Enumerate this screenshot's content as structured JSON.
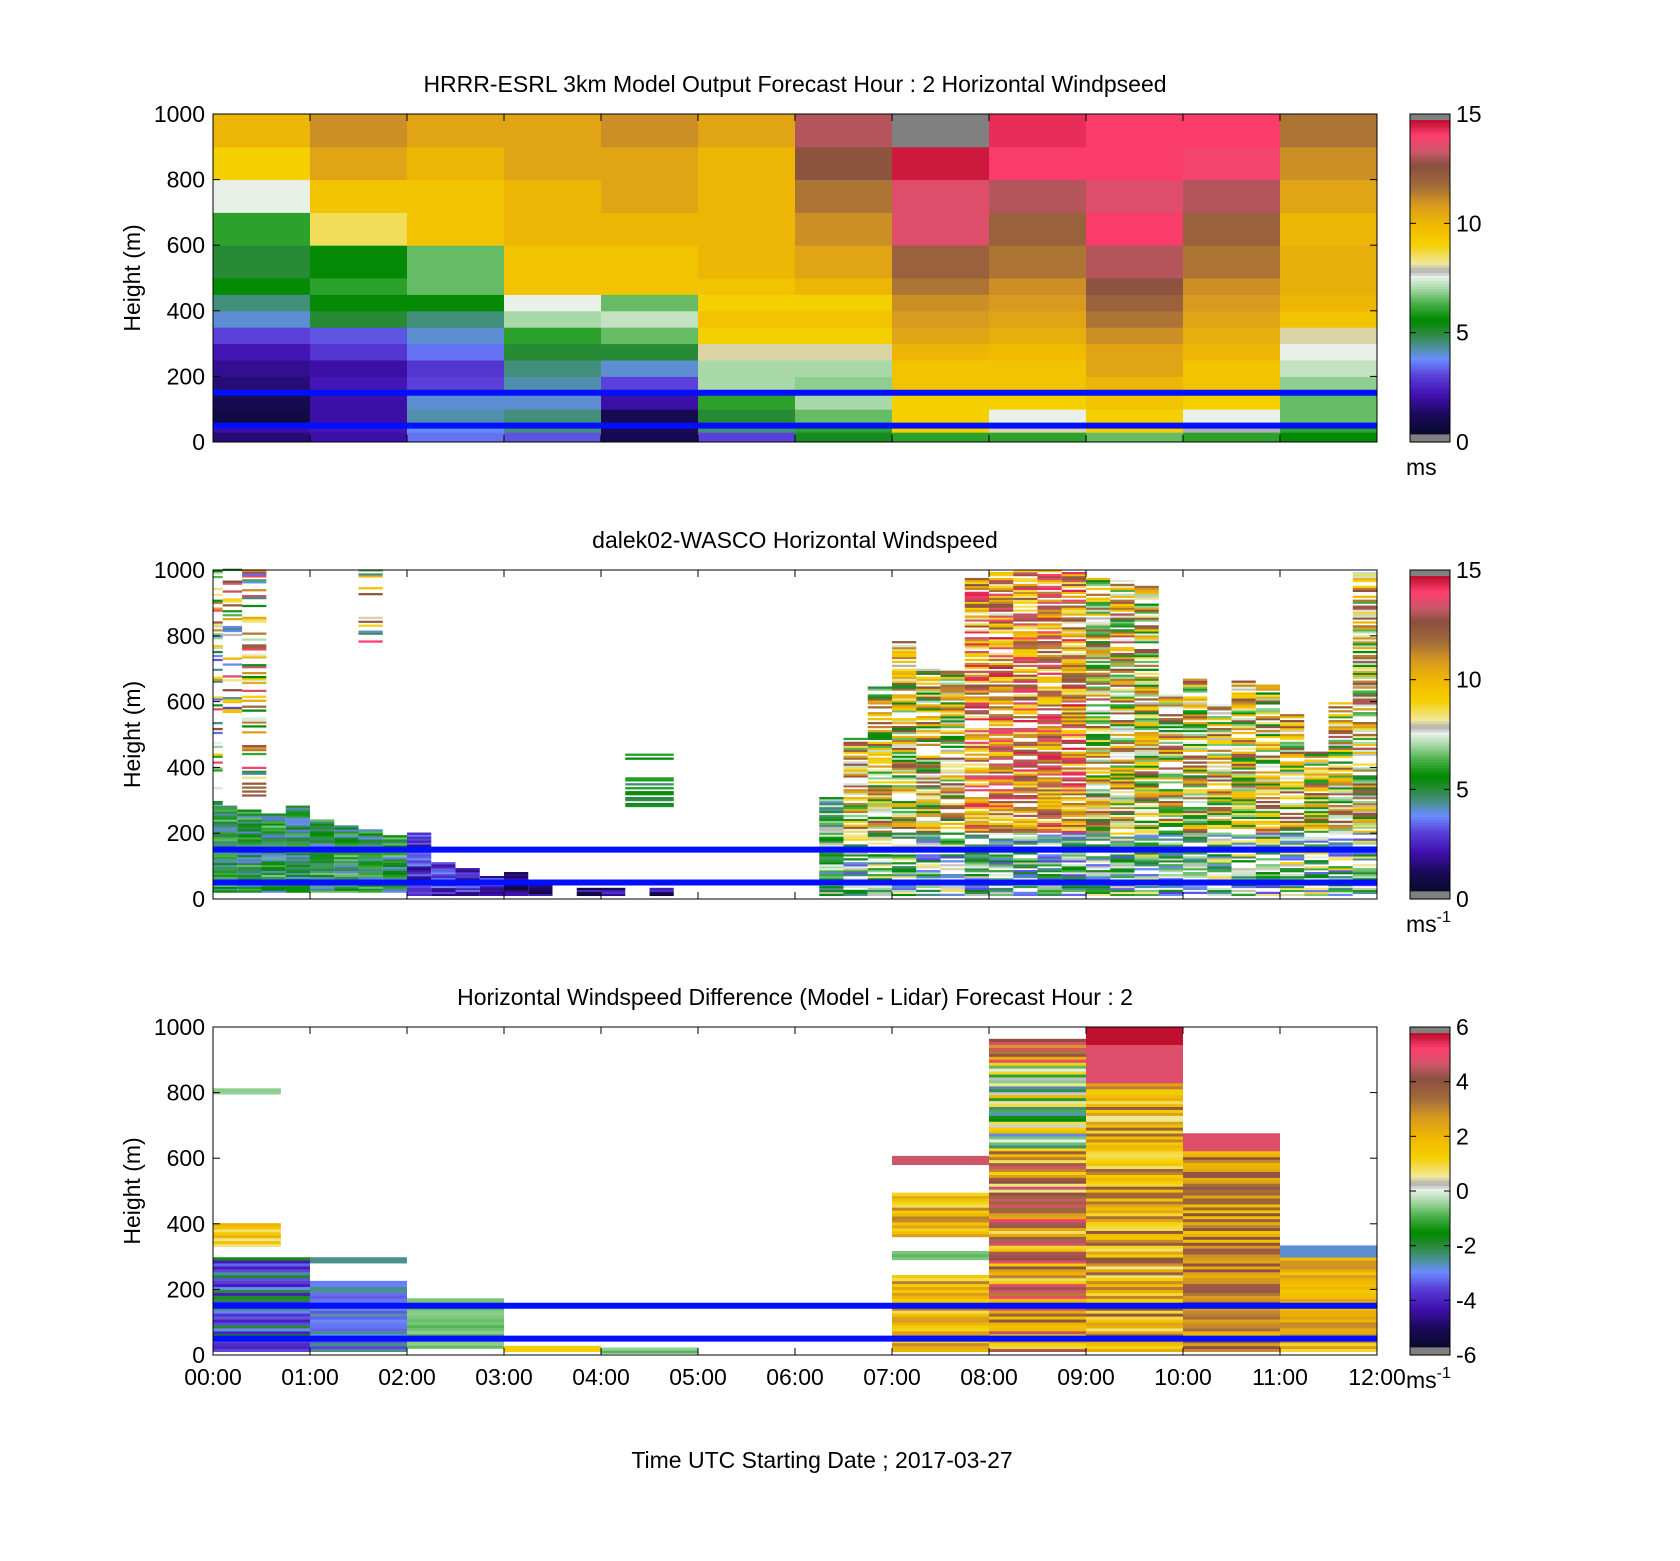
{
  "figure": {
    "xlabel": "Time UTC  Starting Date ; 2017-03-27",
    "unit_main": "ms",
    "unit_sup": "-1"
  },
  "chart_data": [
    {
      "type": "heatmap",
      "title": "HRRR-ESRL 3km Model Output   Forecast Hour : 2 Horizontal Windpseed",
      "ylabel": "Height (m)",
      "xlim": [
        0,
        12
      ],
      "ylim": [
        0,
        1000
      ],
      "yticks": [
        0,
        200,
        400,
        600,
        800,
        1000
      ],
      "xticks": [
        "00:00",
        "01:00",
        "02:00",
        "03:00",
        "04:00",
        "05:00",
        "06:00",
        "07:00",
        "08:00",
        "09:00",
        "10:00",
        "11:00",
        "12:00"
      ],
      "show_xticklabels": false,
      "colorbar": {
        "min": 0,
        "max": 15,
        "ticks": [
          0,
          5,
          10,
          15
        ],
        "unit": "ms",
        "unit_sup": "",
        "scale": "speed"
      },
      "reference_heights": [
        150,
        50
      ],
      "heights": [
        0,
        30,
        60,
        100,
        150,
        200,
        250,
        300,
        350,
        400,
        450,
        500,
        600,
        700,
        800,
        900,
        1000
      ],
      "columns_x": [
        0,
        1,
        2,
        3,
        4,
        5,
        6,
        7,
        8,
        9,
        10,
        11
      ],
      "values": [
        [
          1.5,
          2.0,
          3.5,
          3.2,
          1.0,
          3.0,
          5.2,
          6.0,
          6.0,
          6.5,
          6.0,
          5.5
        ],
        [
          2.0,
          2.2,
          3.8,
          4.5,
          1.2,
          4.5,
          6.0,
          9.0,
          8.0,
          9.0,
          7.8,
          6.0
        ],
        [
          0.8,
          2.0,
          4.2,
          4.5,
          1.0,
          5.0,
          6.5,
          9.0,
          7.5,
          9.0,
          7.5,
          6.5
        ],
        [
          1.0,
          2.0,
          4.0,
          4.0,
          2.0,
          6.0,
          7.0,
          9.0,
          9.0,
          9.5,
          9.0,
          6.5
        ],
        [
          1.5,
          2.2,
          3.0,
          4.2,
          3.0,
          7.0,
          6.8,
          9.5,
          9.5,
          10.0,
          9.5,
          6.8
        ],
        [
          1.8,
          2.0,
          2.8,
          4.5,
          4.0,
          7.0,
          7.0,
          9.5,
          9.5,
          10.5,
          9.5,
          7.2
        ],
        [
          2.2,
          2.8,
          3.5,
          5.0,
          5.0,
          8.0,
          8.0,
          10.0,
          9.8,
          10.5,
          10.0,
          7.5
        ],
        [
          3.0,
          3.2,
          4.0,
          6.0,
          6.5,
          9.0,
          9.0,
          10.5,
          10.2,
          11.0,
          10.2,
          8.0
        ],
        [
          4.0,
          5.0,
          4.5,
          7.0,
          7.2,
          9.5,
          9.5,
          10.8,
          10.5,
          11.5,
          10.5,
          9.5
        ],
        [
          4.5,
          5.5,
          5.5,
          7.5,
          6.5,
          9.0,
          9.0,
          11.0,
          10.8,
          12.0,
          10.8,
          10.0
        ],
        [
          5.5,
          6.0,
          6.5,
          9.5,
          9.5,
          9.5,
          10.0,
          11.5,
          11.0,
          12.5,
          11.0,
          10.2
        ],
        [
          5.0,
          5.5,
          6.5,
          9.5,
          9.5,
          10.0,
          10.5,
          12.0,
          11.5,
          13.0,
          11.5,
          10.2
        ],
        [
          6.0,
          8.5,
          9.5,
          10.0,
          10.0,
          10.0,
          11.0,
          13.5,
          12.0,
          14.0,
          12.0,
          10.0
        ],
        [
          7.5,
          9.5,
          9.5,
          10.0,
          10.5,
          10.0,
          11.5,
          13.5,
          13.0,
          13.5,
          13.0,
          10.5
        ],
        [
          9.0,
          10.5,
          10.0,
          10.5,
          10.5,
          10.0,
          12.5,
          14.5,
          14.0,
          14.0,
          13.8,
          11.0
        ],
        [
          10.0,
          11.0,
          10.5,
          10.5,
          11.0,
          10.5,
          13.0,
          14.8,
          14.2,
          14.0,
          14.0,
          11.5
        ]
      ]
    },
    {
      "type": "heatmap",
      "title": "dalek02-WASCO  Horizontal Windspeed",
      "ylabel": "Height (m)",
      "xlim": [
        0,
        12
      ],
      "ylim": [
        0,
        1000
      ],
      "yticks": [
        0,
        200,
        400,
        600,
        800,
        1000
      ],
      "xticks": [
        "00:00",
        "01:00",
        "02:00",
        "03:00",
        "04:00",
        "05:00",
        "06:00",
        "07:00",
        "08:00",
        "09:00",
        "10:00",
        "11:00",
        "12:00"
      ],
      "show_xticklabels": false,
      "colorbar": {
        "min": 0,
        "max": 15,
        "ticks": [
          0,
          5,
          10,
          15
        ],
        "unit": "ms",
        "unit_sup": "-1",
        "scale": "speed"
      },
      "reference_heights": [
        150,
        50
      ],
      "segments": [
        [
          0.0,
          0.25,
          20,
          280,
          "low_green"
        ],
        [
          0.25,
          0.5,
          20,
          270,
          "low_green"
        ],
        [
          0.5,
          0.75,
          20,
          260,
          "low_green"
        ],
        [
          0.75,
          1.0,
          20,
          280,
          "low_green"
        ],
        [
          1.0,
          1.25,
          20,
          240,
          "low_green"
        ],
        [
          1.25,
          1.5,
          20,
          220,
          "low_green"
        ],
        [
          1.5,
          1.75,
          20,
          210,
          "low_green"
        ],
        [
          1.75,
          2.0,
          20,
          190,
          "low_green"
        ],
        [
          2.0,
          2.25,
          10,
          200,
          "low_blue"
        ],
        [
          2.25,
          2.5,
          10,
          110,
          "low_blue"
        ],
        [
          2.5,
          2.75,
          10,
          90,
          "low_blue"
        ],
        [
          2.75,
          3.0,
          10,
          70,
          "low_blue"
        ],
        [
          3.0,
          3.25,
          10,
          80,
          "low_purple"
        ],
        [
          3.25,
          3.5,
          10,
          50,
          "low_purple"
        ],
        [
          3.75,
          4.0,
          10,
          30,
          "low_purple"
        ],
        [
          4.0,
          4.25,
          10,
          30,
          "low_purple"
        ],
        [
          4.5,
          4.75,
          10,
          30,
          "low_purple"
        ],
        [
          6.25,
          6.5,
          10,
          310,
          "mix_green"
        ],
        [
          6.5,
          6.75,
          10,
          490,
          "mix"
        ],
        [
          6.75,
          7.0,
          10,
          660,
          "mix"
        ],
        [
          7.0,
          7.25,
          10,
          780,
          "mix"
        ],
        [
          7.25,
          7.5,
          10,
          700,
          "mix"
        ],
        [
          7.5,
          7.75,
          10,
          700,
          "mix"
        ],
        [
          7.75,
          8.0,
          10,
          980,
          "mix_hi"
        ],
        [
          8.0,
          8.25,
          10,
          990,
          "mix_hi"
        ],
        [
          8.25,
          8.5,
          10,
          1000,
          "mix_hi"
        ],
        [
          8.5,
          8.75,
          10,
          1000,
          "mix_hi"
        ],
        [
          8.75,
          9.0,
          10,
          990,
          "mix_hi"
        ],
        [
          9.0,
          9.25,
          10,
          990,
          "mix"
        ],
        [
          9.25,
          9.5,
          10,
          970,
          "mix"
        ],
        [
          9.5,
          9.75,
          10,
          950,
          "mix"
        ],
        [
          9.75,
          10.0,
          10,
          620,
          "mix"
        ],
        [
          10.0,
          10.25,
          10,
          680,
          "mix"
        ],
        [
          10.25,
          10.5,
          10,
          600,
          "mix"
        ],
        [
          10.5,
          10.75,
          10,
          660,
          "mix"
        ],
        [
          10.75,
          11.0,
          10,
          650,
          "mix"
        ],
        [
          11.0,
          11.25,
          10,
          560,
          "mix"
        ],
        [
          11.25,
          11.5,
          10,
          450,
          "mix"
        ],
        [
          11.5,
          11.75,
          10,
          600,
          "mix"
        ],
        [
          11.75,
          12.0,
          10,
          1000,
          "mix"
        ],
        [
          0.0,
          0.1,
          280,
          1000,
          "sparse_hi"
        ],
        [
          0.1,
          0.3,
          560,
          1000,
          "sparse_hi"
        ],
        [
          0.3,
          0.55,
          300,
          1000,
          "sparse_hi"
        ],
        [
          1.5,
          1.75,
          780,
          1000,
          "sparse_hi"
        ],
        [
          4.25,
          4.75,
          280,
          440,
          "sparse_green"
        ]
      ]
    },
    {
      "type": "heatmap",
      "title": "Horizontal Windspeed Difference (Model - Lidar) Forecast Hour : 2",
      "ylabel": "Height (m)",
      "xlim": [
        0,
        12
      ],
      "ylim": [
        0,
        1000
      ],
      "yticks": [
        0,
        200,
        400,
        600,
        800,
        1000
      ],
      "xticks": [
        "00:00",
        "01:00",
        "02:00",
        "03:00",
        "04:00",
        "05:00",
        "06:00",
        "07:00",
        "08:00",
        "09:00",
        "10:00",
        "11:00",
        "12:00"
      ],
      "show_xticklabels": true,
      "colorbar": {
        "min": -6,
        "max": 6,
        "ticks": [
          -6,
          -4,
          -2,
          0,
          2,
          4,
          6
        ],
        "unit": "ms",
        "unit_sup": "-1",
        "scale": "diff"
      },
      "reference_heights": [
        150,
        50
      ],
      "segments": [
        [
          0.0,
          1.0,
          10,
          290,
          "diff_green_blue"
        ],
        [
          0.0,
          0.7,
          330,
          400,
          "diff_pos_low"
        ],
        [
          0.0,
          0.7,
          795,
          805,
          "diff_pale"
        ],
        [
          1.0,
          2.0,
          10,
          220,
          "diff_green_dark"
        ],
        [
          2.0,
          3.0,
          20,
          170,
          "diff_pale"
        ],
        [
          1.0,
          2.0,
          280,
          290,
          "diff_green"
        ],
        [
          3.0,
          4.0,
          10,
          25,
          "diff_yellow"
        ],
        [
          4.0,
          5.0,
          5,
          20,
          "diff_pale"
        ],
        [
          7.0,
          8.0,
          10,
          240,
          "diff_pos"
        ],
        [
          7.0,
          8.0,
          290,
          310,
          "diff_pale"
        ],
        [
          7.0,
          8.0,
          360,
          490,
          "diff_pos"
        ],
        [
          7.0,
          8.0,
          580,
          600,
          "diff_red"
        ],
        [
          8.0,
          9.0,
          10,
          960,
          "diff_mix_hi"
        ],
        [
          9.0,
          10.0,
          10,
          1000,
          "diff_mix_9"
        ],
        [
          10.0,
          11.0,
          10,
          670,
          "diff_mix_10"
        ],
        [
          11.0,
          12.0,
          10,
          330,
          "diff_mix_11"
        ]
      ]
    }
  ]
}
